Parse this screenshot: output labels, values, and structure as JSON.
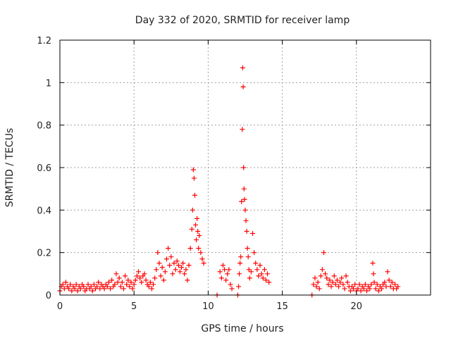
{
  "chart_data": {
    "type": "scatter",
    "title": "Day 332 of 2020, SRMTID for receiver lamp",
    "xlabel": "GPS time / hours",
    "ylabel": "SRMTID / TECUs",
    "xlim": [
      0,
      25
    ],
    "ylim": [
      0,
      1.2
    ],
    "x_ticks": [
      "0",
      "5",
      "10",
      "15",
      "20"
    ],
    "y_ticks": [
      "0",
      "0.2",
      "0.4",
      "0.6",
      "0.8",
      "1",
      "1.2"
    ],
    "grid": true,
    "legend": "none",
    "marker": "+",
    "series": [
      {
        "name": "SRMTID",
        "color": "#ff0000",
        "points": [
          [
            0.0,
            0.02
          ],
          [
            0.1,
            0.04
          ],
          [
            0.2,
            0.05
          ],
          [
            0.3,
            0.03
          ],
          [
            0.4,
            0.06
          ],
          [
            0.5,
            0.04
          ],
          [
            0.6,
            0.03
          ],
          [
            0.7,
            0.05
          ],
          [
            0.8,
            0.02
          ],
          [
            0.9,
            0.04
          ],
          [
            1.0,
            0.03
          ],
          [
            1.1,
            0.05
          ],
          [
            1.2,
            0.02
          ],
          [
            1.3,
            0.04
          ],
          [
            1.4,
            0.03
          ],
          [
            1.5,
            0.05
          ],
          [
            1.6,
            0.04
          ],
          [
            1.7,
            0.02
          ],
          [
            1.8,
            0.03
          ],
          [
            1.9,
            0.05
          ],
          [
            2.0,
            0.03
          ],
          [
            2.1,
            0.04
          ],
          [
            2.2,
            0.02
          ],
          [
            2.3,
            0.05
          ],
          [
            2.4,
            0.03
          ],
          [
            2.5,
            0.04
          ],
          [
            2.6,
            0.06
          ],
          [
            2.7,
            0.03
          ],
          [
            2.8,
            0.05
          ],
          [
            2.9,
            0.04
          ],
          [
            3.0,
            0.03
          ],
          [
            3.1,
            0.05
          ],
          [
            3.2,
            0.04
          ],
          [
            3.3,
            0.06
          ],
          [
            3.4,
            0.03
          ],
          [
            3.5,
            0.07
          ],
          [
            3.6,
            0.04
          ],
          [
            3.7,
            0.05
          ],
          [
            3.8,
            0.1
          ],
          [
            3.9,
            0.06
          ],
          [
            4.0,
            0.08
          ],
          [
            4.1,
            0.04
          ],
          [
            4.2,
            0.06
          ],
          [
            4.3,
            0.03
          ],
          [
            4.4,
            0.09
          ],
          [
            4.5,
            0.05
          ],
          [
            4.6,
            0.07
          ],
          [
            4.7,
            0.04
          ],
          [
            4.8,
            0.06
          ],
          [
            4.9,
            0.03
          ],
          [
            5.0,
            0.05
          ],
          [
            5.1,
            0.07
          ],
          [
            5.2,
            0.09
          ],
          [
            5.3,
            0.11
          ],
          [
            5.4,
            0.08
          ],
          [
            5.5,
            0.06
          ],
          [
            5.6,
            0.09
          ],
          [
            5.7,
            0.1
          ],
          [
            5.8,
            0.07
          ],
          [
            5.9,
            0.05
          ],
          [
            6.0,
            0.04
          ],
          [
            6.1,
            0.06
          ],
          [
            6.2,
            0.03
          ],
          [
            6.3,
            0.05
          ],
          [
            6.4,
            0.08
          ],
          [
            6.5,
            0.12
          ],
          [
            6.6,
            0.2
          ],
          [
            6.7,
            0.15
          ],
          [
            6.8,
            0.09
          ],
          [
            6.9,
            0.13
          ],
          [
            7.0,
            0.07
          ],
          [
            7.1,
            0.11
          ],
          [
            7.2,
            0.17
          ],
          [
            7.3,
            0.22
          ],
          [
            7.4,
            0.14
          ],
          [
            7.5,
            0.18
          ],
          [
            7.6,
            0.1
          ],
          [
            7.7,
            0.15
          ],
          [
            7.8,
            0.12
          ],
          [
            7.9,
            0.16
          ],
          [
            8.0,
            0.14
          ],
          [
            8.1,
            0.11
          ],
          [
            8.2,
            0.13
          ],
          [
            8.3,
            0.15
          ],
          [
            8.4,
            0.1
          ],
          [
            8.5,
            0.12
          ],
          [
            8.6,
            0.07
          ],
          [
            8.7,
            0.14
          ],
          [
            8.8,
            0.22
          ],
          [
            8.9,
            0.31
          ],
          [
            8.95,
            0.4
          ],
          [
            9.0,
            0.59
          ],
          [
            9.05,
            0.55
          ],
          [
            9.1,
            0.47
          ],
          [
            9.15,
            0.33
          ],
          [
            9.2,
            0.26
          ],
          [
            9.25,
            0.36
          ],
          [
            9.3,
            0.3
          ],
          [
            9.35,
            0.22
          ],
          [
            9.4,
            0.28
          ],
          [
            9.5,
            0.2
          ],
          [
            9.6,
            0.17
          ],
          [
            9.7,
            0.15
          ],
          [
            10.6,
            0.0
          ],
          [
            10.8,
            0.11
          ],
          [
            10.9,
            0.08
          ],
          [
            11.0,
            0.14
          ],
          [
            11.1,
            0.12
          ],
          [
            11.2,
            0.07
          ],
          [
            11.3,
            0.1
          ],
          [
            11.4,
            0.12
          ],
          [
            11.5,
            0.05
          ],
          [
            11.6,
            0.03
          ],
          [
            12.0,
            0.0
          ],
          [
            12.05,
            0.04
          ],
          [
            12.1,
            0.1
          ],
          [
            12.15,
            0.15
          ],
          [
            12.2,
            0.18
          ],
          [
            12.25,
            0.44
          ],
          [
            12.3,
            0.78
          ],
          [
            12.33,
            1.07
          ],
          [
            12.36,
            0.98
          ],
          [
            12.39,
            0.6
          ],
          [
            12.42,
            0.5
          ],
          [
            12.45,
            0.45
          ],
          [
            12.5,
            0.4
          ],
          [
            12.55,
            0.35
          ],
          [
            12.6,
            0.3
          ],
          [
            12.65,
            0.22
          ],
          [
            12.7,
            0.18
          ],
          [
            12.75,
            0.12
          ],
          [
            12.8,
            0.08
          ],
          [
            12.9,
            0.11
          ],
          [
            13.0,
            0.29
          ],
          [
            13.1,
            0.2
          ],
          [
            13.2,
            0.15
          ],
          [
            13.3,
            0.12
          ],
          [
            13.4,
            0.09
          ],
          [
            13.5,
            0.14
          ],
          [
            13.6,
            0.1
          ],
          [
            13.7,
            0.08
          ],
          [
            13.8,
            0.12
          ],
          [
            13.9,
            0.07
          ],
          [
            14.0,
            0.1
          ],
          [
            14.1,
            0.06
          ],
          [
            17.0,
            0.0
          ],
          [
            17.1,
            0.05
          ],
          [
            17.2,
            0.08
          ],
          [
            17.3,
            0.04
          ],
          [
            17.4,
            0.06
          ],
          [
            17.5,
            0.03
          ],
          [
            17.6,
            0.09
          ],
          [
            17.7,
            0.12
          ],
          [
            17.8,
            0.2
          ],
          [
            17.9,
            0.1
          ],
          [
            18.0,
            0.08
          ],
          [
            18.1,
            0.05
          ],
          [
            18.2,
            0.07
          ],
          [
            18.3,
            0.04
          ],
          [
            18.4,
            0.06
          ],
          [
            18.5,
            0.09
          ],
          [
            18.6,
            0.05
          ],
          [
            18.7,
            0.07
          ],
          [
            18.8,
            0.04
          ],
          [
            18.9,
            0.06
          ],
          [
            19.0,
            0.08
          ],
          [
            19.1,
            0.05
          ],
          [
            19.2,
            0.03
          ],
          [
            19.3,
            0.09
          ],
          [
            19.4,
            0.06
          ],
          [
            19.5,
            0.04
          ],
          [
            19.6,
            0.02
          ],
          [
            19.7,
            0.04
          ],
          [
            19.8,
            0.03
          ],
          [
            19.9,
            0.05
          ],
          [
            20.0,
            0.02
          ],
          [
            20.1,
            0.03
          ],
          [
            20.2,
            0.05
          ],
          [
            20.3,
            0.02
          ],
          [
            20.4,
            0.04
          ],
          [
            20.5,
            0.03
          ],
          [
            20.6,
            0.05
          ],
          [
            20.7,
            0.02
          ],
          [
            20.8,
            0.04
          ],
          [
            20.9,
            0.03
          ],
          [
            21.0,
            0.05
          ],
          [
            21.1,
            0.15
          ],
          [
            21.15,
            0.1
          ],
          [
            21.2,
            0.06
          ],
          [
            21.3,
            0.03
          ],
          [
            21.4,
            0.05
          ],
          [
            21.5,
            0.02
          ],
          [
            21.6,
            0.04
          ],
          [
            21.7,
            0.03
          ],
          [
            21.8,
            0.05
          ],
          [
            21.9,
            0.06
          ],
          [
            22.0,
            0.04
          ],
          [
            22.1,
            0.11
          ],
          [
            22.2,
            0.07
          ],
          [
            22.3,
            0.04
          ],
          [
            22.4,
            0.06
          ],
          [
            22.5,
            0.03
          ],
          [
            22.6,
            0.05
          ],
          [
            22.7,
            0.03
          ],
          [
            22.8,
            0.04
          ]
        ]
      }
    ]
  }
}
